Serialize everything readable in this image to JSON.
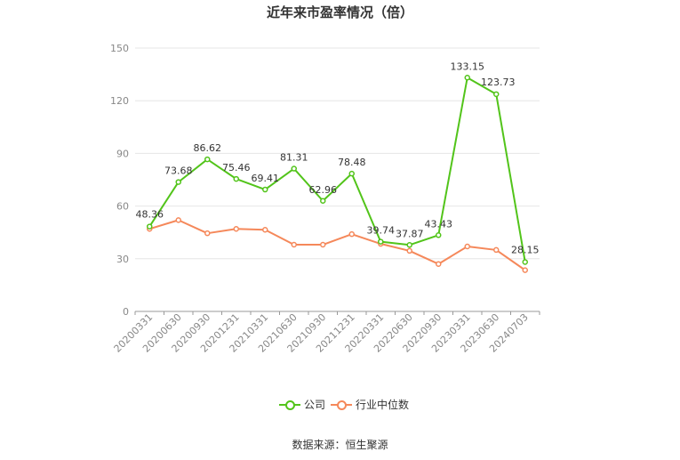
{
  "chart_data": {
    "type": "line",
    "title": "近年来市盈率情况（倍）",
    "categories": [
      "20200331",
      "20200630",
      "20200930",
      "20201231",
      "20210331",
      "20210630",
      "20210930",
      "20211231",
      "20220331",
      "20220630",
      "20220930",
      "20230331",
      "20230630",
      "20240703"
    ],
    "series": [
      {
        "name": "公司",
        "color": "#52c41a",
        "values": [
          48.36,
          73.68,
          86.62,
          75.46,
          69.41,
          81.31,
          62.96,
          78.48,
          39.74,
          37.87,
          43.43,
          133.15,
          123.73,
          28.15
        ],
        "show_labels": true
      },
      {
        "name": "行业中位数",
        "color": "#f5885a",
        "values": [
          47,
          52,
          44.5,
          47,
          46.5,
          38,
          38,
          44,
          38.5,
          34.5,
          27,
          37,
          35,
          23.5
        ],
        "show_labels": false
      }
    ],
    "ylim": [
      0,
      150
    ],
    "yticks": [
      0,
      30,
      60,
      90,
      120,
      150
    ],
    "grid": true,
    "legend": "bottom-center"
  },
  "source": "数据来源：恒生聚源"
}
